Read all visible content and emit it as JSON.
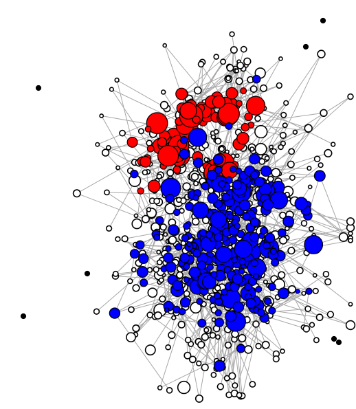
{
  "diagram": {
    "type": "network-graph",
    "background_color": "#ffffff",
    "edge_color": "#a6a6a6",
    "node_stroke_color": "#000000",
    "groups": [
      {
        "id": "red-cluster",
        "fill": "#ff0000"
      },
      {
        "id": "blue-cluster",
        "fill": "#0000ff"
      },
      {
        "id": "unassigned",
        "fill": "#ffffff"
      }
    ],
    "isolated_nodes": 7,
    "random_seed": 20240517
  }
}
